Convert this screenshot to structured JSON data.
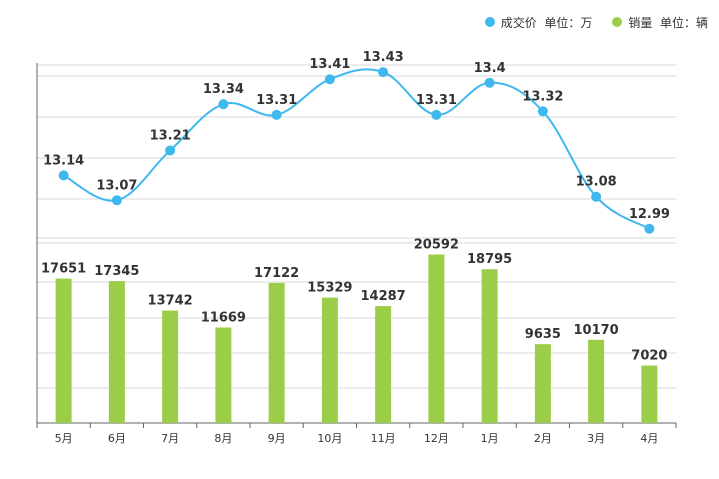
{
  "chart_data": {
    "type": "bar+line",
    "categories": [
      "5月",
      "6月",
      "7月",
      "8月",
      "9月",
      "10月",
      "11月",
      "12月",
      "1月",
      "2月",
      "3月",
      "4月"
    ],
    "series": [
      {
        "name": "成交价  单位：万",
        "type": "line",
        "color": "#3fb8ee",
        "values": [
          13.14,
          13.07,
          13.21,
          13.34,
          13.31,
          13.41,
          13.43,
          13.31,
          13.4,
          13.32,
          13.08,
          12.99
        ],
        "ylim": [
          12.95,
          13.45
        ]
      },
      {
        "name": "销量  单位：辆",
        "type": "bar",
        "color": "#9bcd48",
        "values": [
          17651,
          17345,
          13742,
          11669,
          17122,
          15329,
          14287,
          20592,
          18795,
          9635,
          10170,
          7020
        ],
        "ylim": [
          0,
          22000
        ]
      }
    ],
    "legend_position": "top-right",
    "grid": true
  }
}
